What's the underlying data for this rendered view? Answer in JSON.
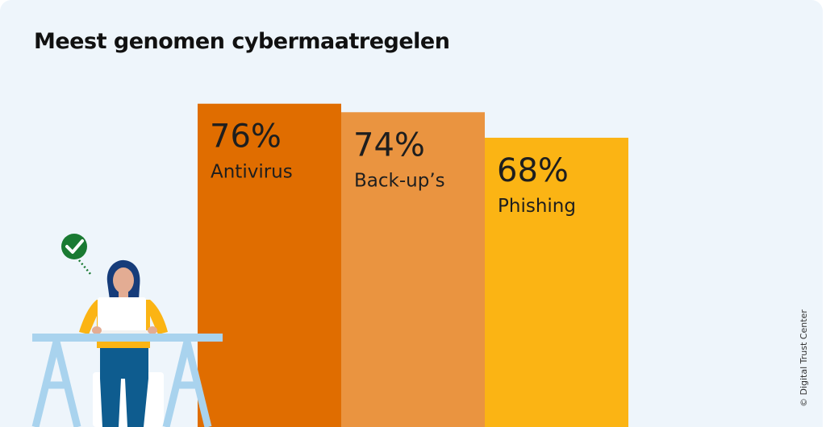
{
  "chart_data": {
    "type": "bar",
    "title": "Meest genomen cybermaatregelen",
    "categories": [
      "Antivirus",
      "Back-up’s",
      "Phishing"
    ],
    "values": [
      76,
      74,
      68
    ],
    "value_labels": [
      "76%",
      "74%",
      "68%"
    ],
    "unit": "%",
    "ylim": [
      0,
      100
    ],
    "grid": false,
    "legend": "none",
    "colors": [
      "#e06d00",
      "#ea9440",
      "#fbb414"
    ]
  },
  "credit": "© Digital Trust Center",
  "colors": {
    "background": "#eef5fb",
    "desk": "#a9d3ee",
    "shirt": "#fbb414",
    "check": "#1a7a32"
  },
  "illustration": {
    "icons": [
      "checkmark-icon",
      "person-at-desk-illustration",
      "laptop-icon"
    ]
  }
}
